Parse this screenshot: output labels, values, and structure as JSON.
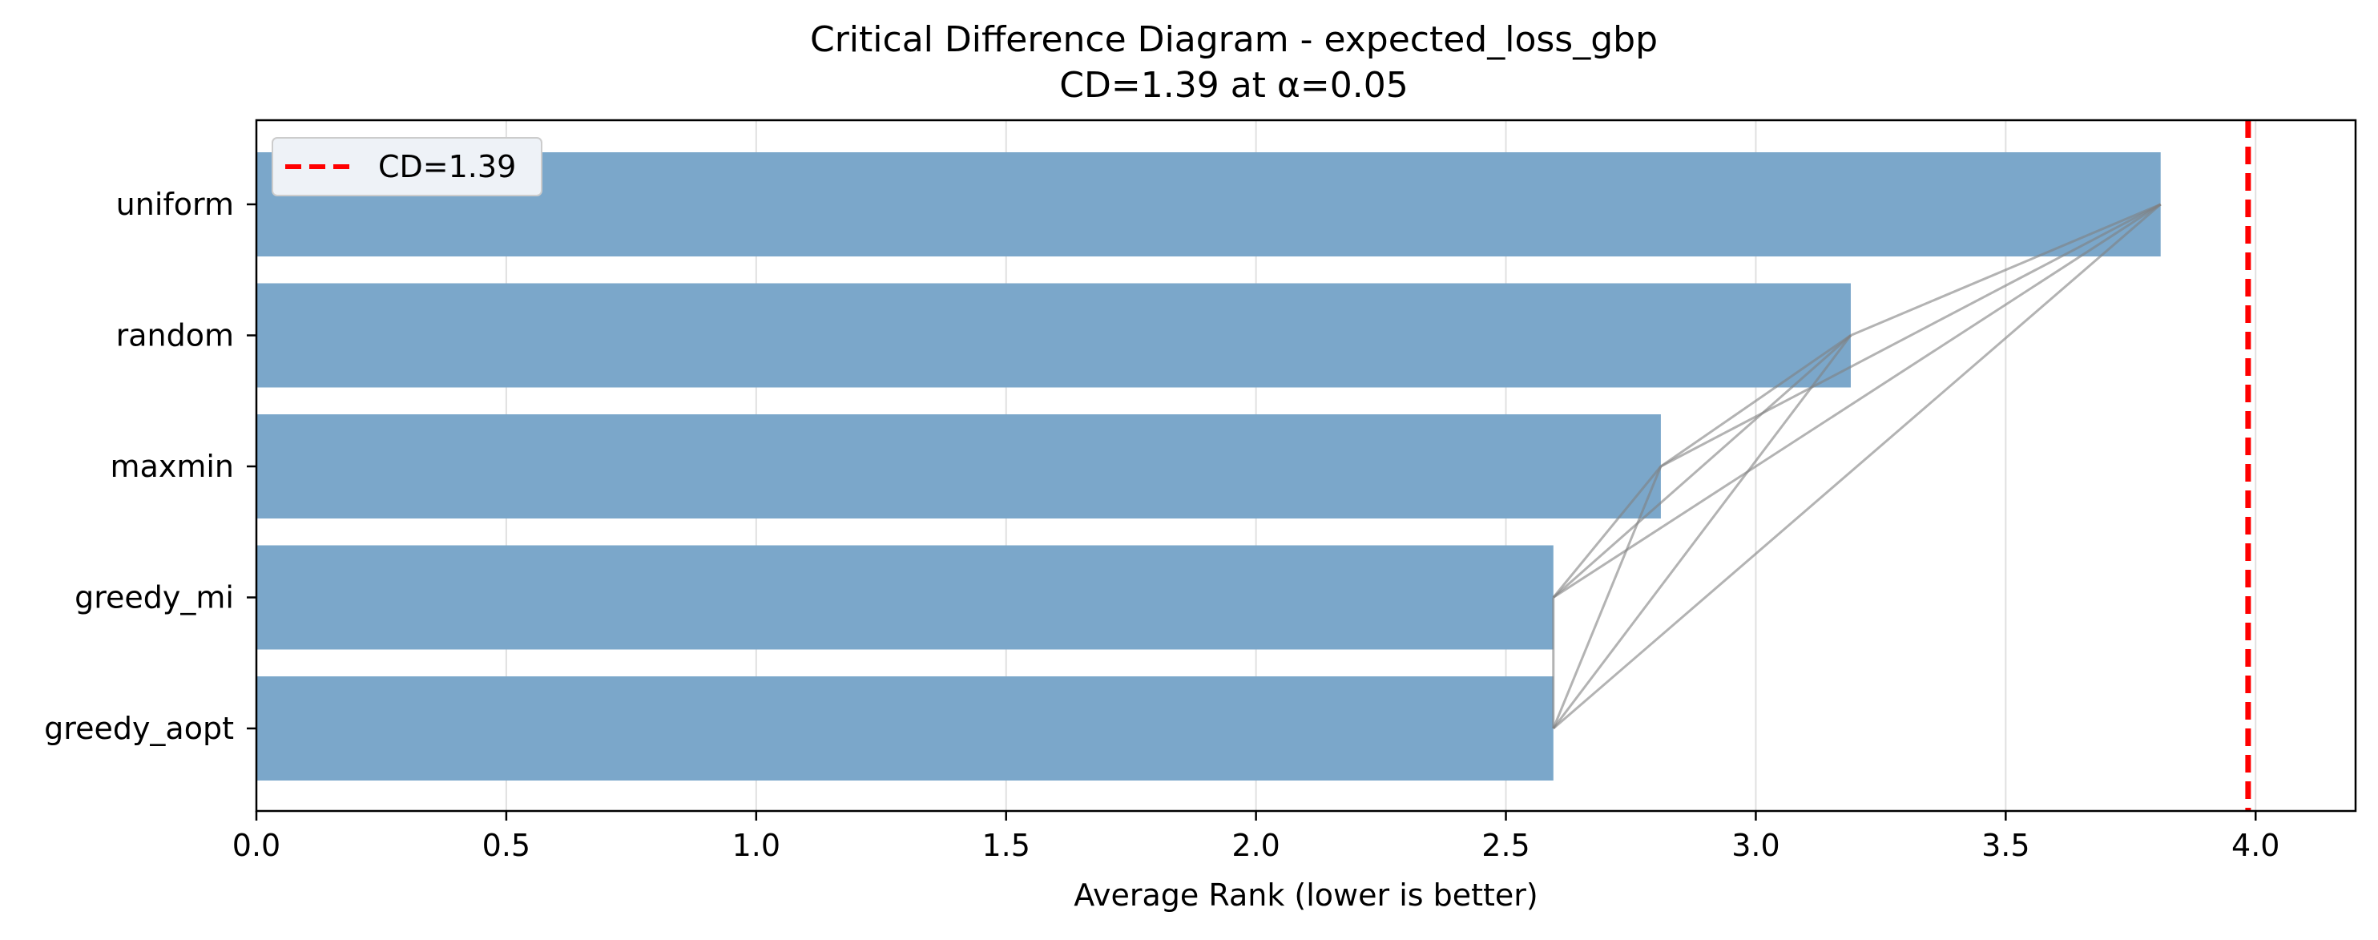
{
  "chart_data": {
    "type": "bar",
    "orientation": "horizontal",
    "title": "Critical Difference Diagram - expected_loss_gbp",
    "subtitle": "CD=1.39 at α=0.05",
    "xlabel": "Average Rank (lower is better)",
    "ylabel": "",
    "xlim": [
      0,
      4.2
    ],
    "xticks": [
      "0.0",
      "0.5",
      "1.0",
      "1.5",
      "2.0",
      "2.5",
      "3.0",
      "3.5",
      "4.0"
    ],
    "grid": "vertical",
    "categories": [
      "uniform",
      "random",
      "maxmin",
      "greedy_mi",
      "greedy_aopt"
    ],
    "values": [
      3.81,
      3.19,
      2.81,
      2.595,
      2.595
    ],
    "critical_difference": {
      "value": 3.985,
      "label": "CD=1.39"
    },
    "legend": {
      "placement": "top-left",
      "entries": [
        "CD=1.39"
      ]
    },
    "connections": [
      [
        "uniform",
        "random"
      ],
      [
        "uniform",
        "maxmin"
      ],
      [
        "uniform",
        "greedy_mi"
      ],
      [
        "uniform",
        "greedy_aopt"
      ],
      [
        "random",
        "maxmin"
      ],
      [
        "random",
        "greedy_mi"
      ],
      [
        "random",
        "greedy_aopt"
      ],
      [
        "maxmin",
        "greedy_mi"
      ],
      [
        "maxmin",
        "greedy_aopt"
      ],
      [
        "greedy_mi",
        "greedy_aopt"
      ]
    ],
    "colors": {
      "bar": "#7ba7ca",
      "cd_line": "#ff0000",
      "connection": "#808080",
      "grid": "#e0e0e0"
    }
  }
}
